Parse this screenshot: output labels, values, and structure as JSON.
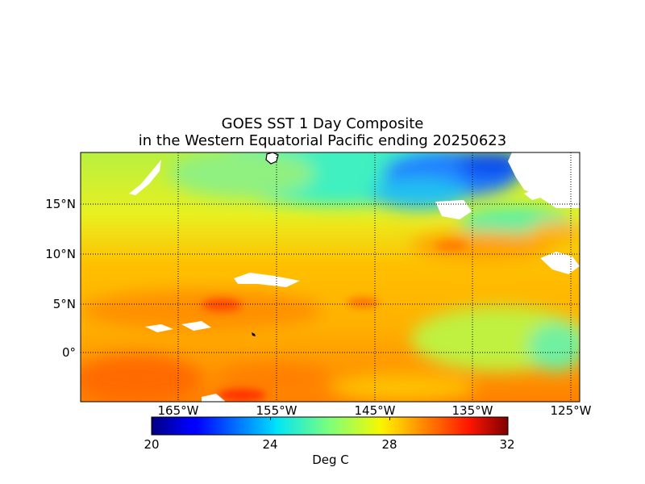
{
  "title": {
    "line1": "GOES SST 1 Day Composite",
    "line2": "in the Western Equatorial Pacific ending 20250623"
  },
  "map": {
    "lat_labels": [
      "15°N",
      "10°N",
      "5°N",
      "0°"
    ],
    "lat_values": [
      15,
      10,
      5,
      0
    ],
    "lon_labels": [
      "165°W",
      "155°W",
      "145°W",
      "135°W",
      "125°W"
    ],
    "lon_values": [
      -165,
      -155,
      -145,
      -135,
      -125
    ],
    "lat_range": [
      -5,
      20
    ],
    "lon_range": [
      -175,
      -124.5
    ],
    "grid": "dotted"
  },
  "colorbar": {
    "ticks": [
      "20",
      "24",
      "28",
      "32"
    ],
    "range": [
      20,
      32
    ],
    "label": "Deg C",
    "colormap": "jet"
  }
}
